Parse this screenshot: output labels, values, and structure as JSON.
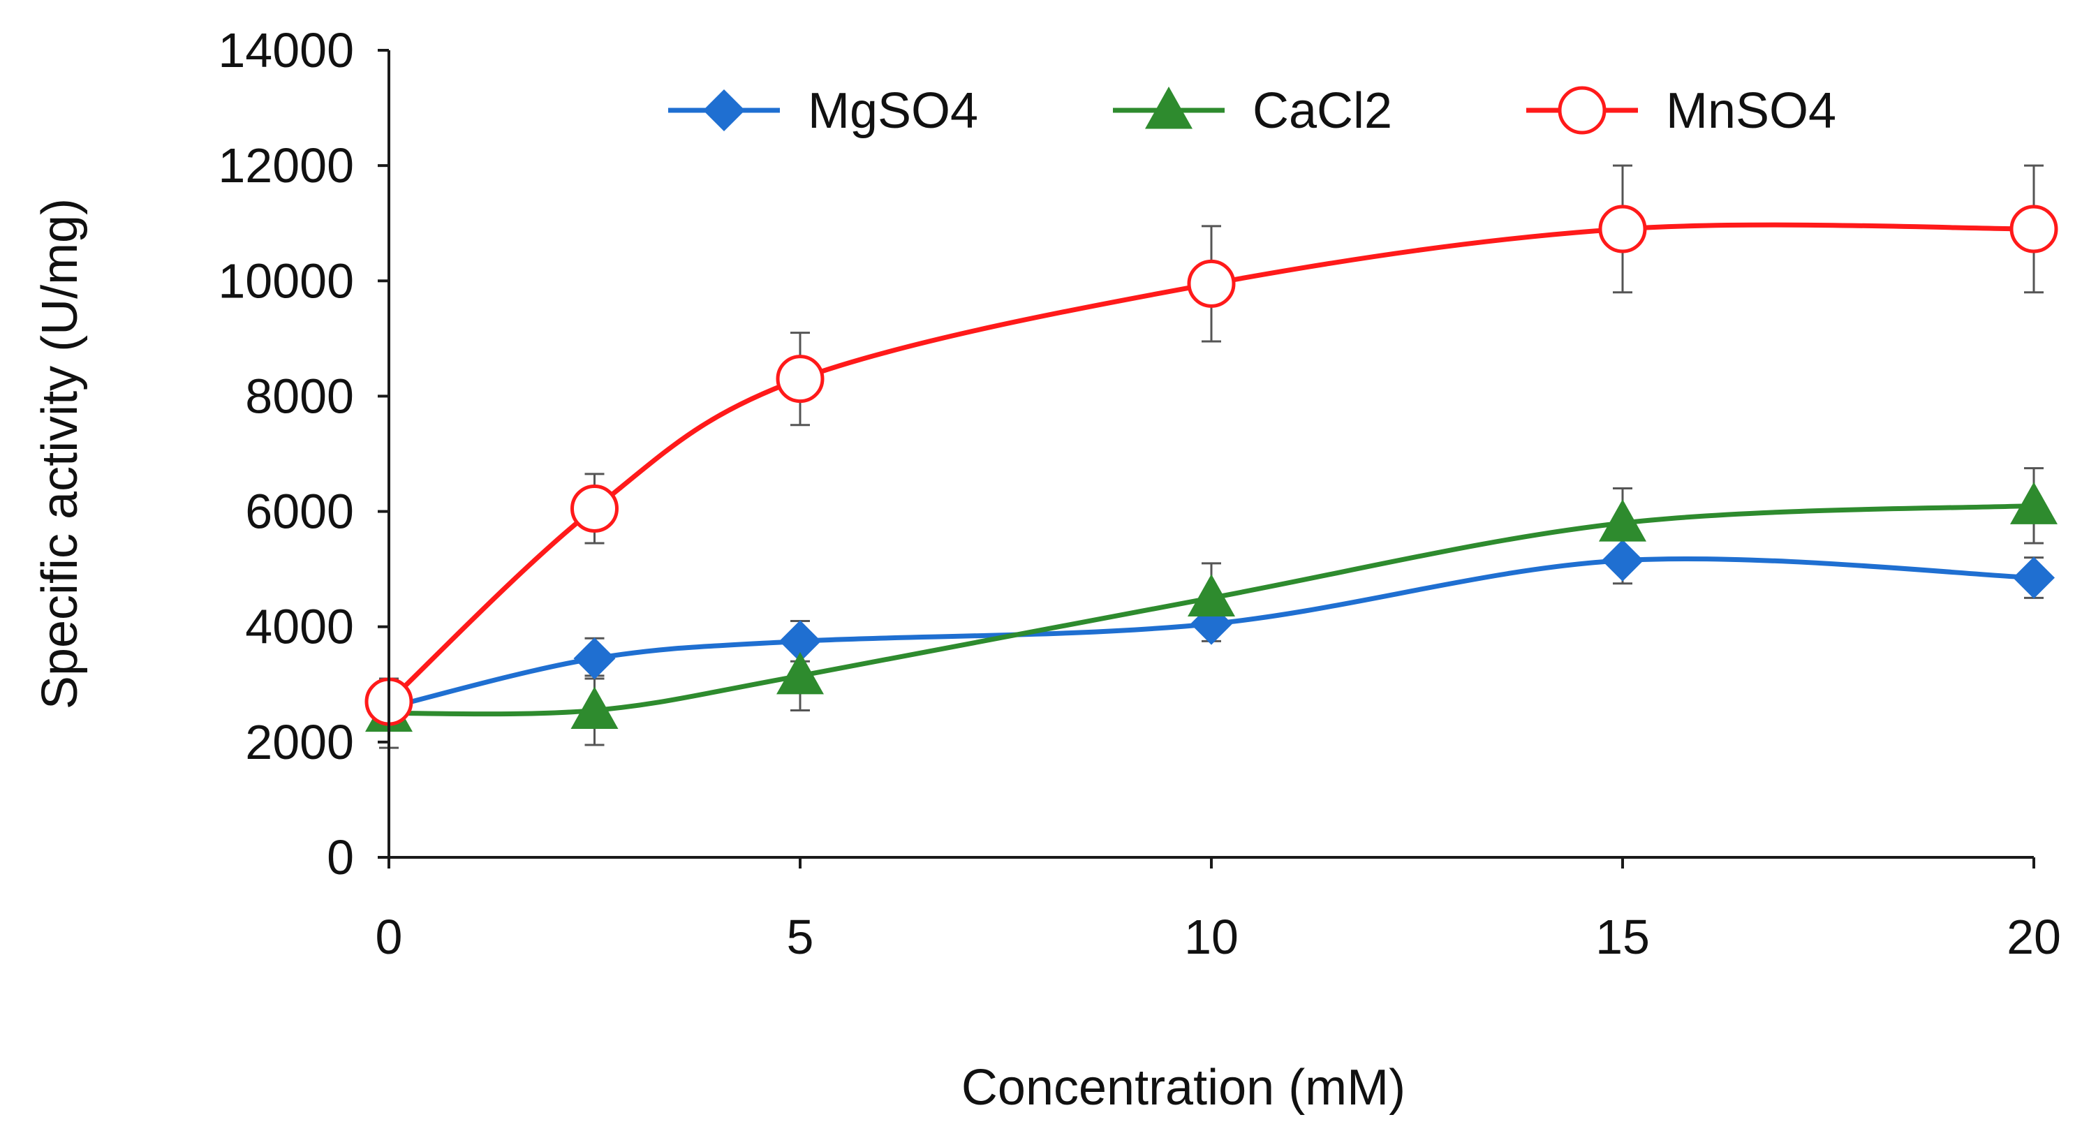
{
  "chart_data": {
    "type": "line",
    "title": "",
    "xlabel": "Concentration (mM)",
    "ylabel": "Specific activity (U/mg)",
    "xlim": [
      0,
      20
    ],
    "ylim": [
      0,
      14000
    ],
    "x_ticks": [
      0,
      5,
      10,
      15,
      20
    ],
    "x_tick_labels": [
      "0",
      "5",
      "10",
      "15",
      "20"
    ],
    "y_ticks": [
      0,
      2000,
      4000,
      6000,
      8000,
      10000,
      12000,
      14000
    ],
    "y_tick_labels": [
      "0",
      "2000",
      "4000",
      "6000",
      "8000",
      "10000",
      "12000",
      "14000"
    ],
    "grid": false,
    "legend_position": "top",
    "smooth_lines": true,
    "x": [
      0,
      2.5,
      5,
      10,
      15,
      20
    ],
    "series": [
      {
        "name": "MgSO4",
        "color": "#1f6fd1",
        "marker": "diamond",
        "values": [
          2600,
          3450,
          3750,
          4050,
          5150,
          4850
        ],
        "errors": [
          0,
          350,
          350,
          300,
          400,
          350
        ]
      },
      {
        "name": "CaCl2",
        "color": "#2e8b2e",
        "marker": "triangle",
        "values": [
          2500,
          2550,
          3150,
          4500,
          5800,
          6100
        ],
        "errors": [
          600,
          600,
          600,
          600,
          600,
          650
        ]
      },
      {
        "name": "MnSO4",
        "color": "#ff1a1a",
        "marker": "open-circle",
        "values": [
          2700,
          6050,
          8300,
          9950,
          10900,
          10900
        ],
        "errors": [
          0,
          600,
          800,
          1000,
          1100,
          1100
        ]
      }
    ]
  }
}
